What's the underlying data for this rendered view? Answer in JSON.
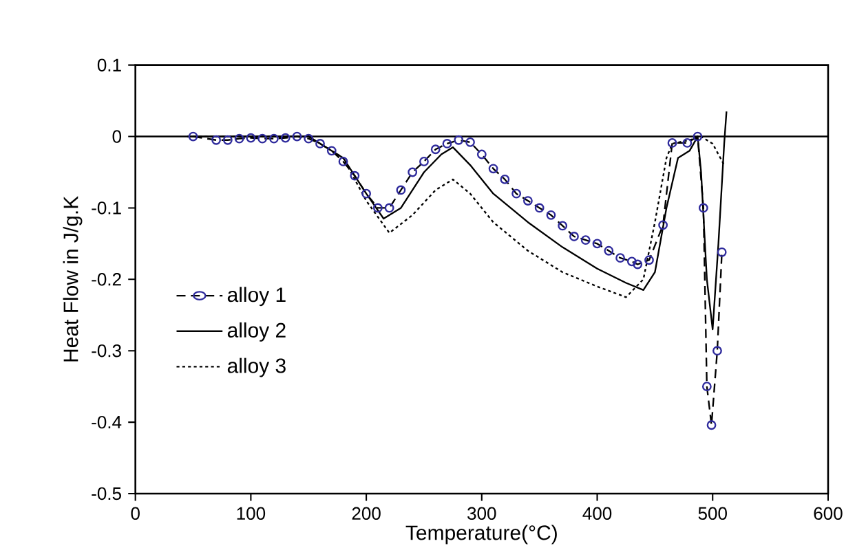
{
  "chart_data": {
    "type": "line",
    "xlabel": "Temperature(°C)",
    "ylabel": "Heat Flow in J/g.K",
    "xlim": [
      0,
      600
    ],
    "xticks": [
      0,
      100,
      200,
      300,
      400,
      500,
      600
    ],
    "ylim": [
      -0.5,
      0.1
    ],
    "yticks": [
      -0.5,
      -0.4,
      -0.3,
      -0.2,
      -0.1,
      0,
      0.1
    ],
    "grid": false,
    "legend": "left",
    "ref_lines": [
      {
        "axis": "y",
        "value": 0,
        "color": "#000000"
      }
    ],
    "series": [
      {
        "name": "alloy 1",
        "color": "#2e2a9c",
        "marker": "circle",
        "line_style": "dashed",
        "x": [
          50,
          70,
          80,
          90,
          100,
          110,
          120,
          130,
          140,
          150,
          160,
          170,
          180,
          190,
          200,
          210,
          220,
          230,
          240,
          250,
          260,
          270,
          280,
          290,
          300,
          310,
          320,
          330,
          340,
          350,
          360,
          370,
          380,
          390,
          400,
          410,
          420,
          430,
          435,
          445,
          457,
          465,
          478,
          487,
          492,
          495,
          499,
          504,
          508
        ],
        "values": [
          0,
          -0.005,
          -0.005,
          -0.003,
          -0.002,
          -0.003,
          -0.003,
          -0.002,
          0,
          -0.003,
          -0.01,
          -0.02,
          -0.035,
          -0.055,
          -0.08,
          -0.1,
          -0.1,
          -0.075,
          -0.05,
          -0.035,
          -0.018,
          -0.01,
          -0.005,
          -0.008,
          -0.025,
          -0.045,
          -0.06,
          -0.08,
          -0.09,
          -0.1,
          -0.11,
          -0.125,
          -0.14,
          -0.145,
          -0.15,
          -0.16,
          -0.17,
          -0.175,
          -0.179,
          -0.173,
          -0.124,
          -0.009,
          -0.009,
          0,
          -0.1,
          -0.35,
          -0.404,
          -0.3,
          -0.162
        ]
      },
      {
        "name": "alloy 2",
        "color": "#000000",
        "marker": "none",
        "line_style": "solid",
        "x": [
          45,
          100,
          150,
          180,
          200,
          215,
          230,
          250,
          265,
          275,
          290,
          310,
          340,
          370,
          400,
          425,
          440,
          450,
          460,
          470,
          480,
          487,
          490,
          495,
          500,
          505,
          510,
          512
        ],
        "values": [
          0,
          0,
          0,
          -0.03,
          -0.08,
          -0.115,
          -0.1,
          -0.05,
          -0.025,
          -0.015,
          -0.04,
          -0.08,
          -0.12,
          -0.155,
          -0.185,
          -0.205,
          -0.215,
          -0.19,
          -0.1,
          -0.03,
          -0.02,
          0,
          -0.05,
          -0.2,
          -0.27,
          -0.15,
          -0.01,
          0.035
        ]
      },
      {
        "name": "alloy 3",
        "color": "#000000",
        "marker": "none",
        "line_style": "dotted",
        "x": [
          45,
          100,
          150,
          180,
          200,
          220,
          240,
          260,
          275,
          290,
          310,
          340,
          370,
          400,
          425,
          440,
          450,
          460,
          465,
          480,
          490,
          500,
          510
        ],
        "values": [
          0,
          0,
          0,
          -0.03,
          -0.09,
          -0.135,
          -0.11,
          -0.075,
          -0.06,
          -0.08,
          -0.12,
          -0.16,
          -0.19,
          -0.21,
          -0.225,
          -0.2,
          -0.12,
          -0.03,
          -0.01,
          -0.005,
          0,
          -0.01,
          -0.04
        ]
      }
    ]
  }
}
